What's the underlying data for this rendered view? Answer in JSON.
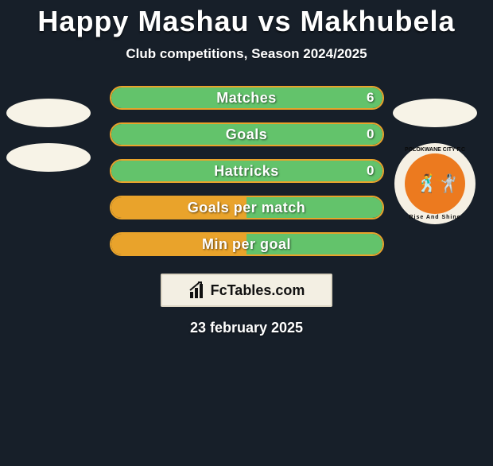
{
  "title": "Happy Mashau vs Makhubela",
  "subtitle": "Club competitions, Season 2024/2025",
  "date": "23 february 2025",
  "footer": {
    "brand": "FcTables.com"
  },
  "colors": {
    "page_bg": "#171f29",
    "text": "#ffffff",
    "series_left": "#e9a32b",
    "series_right": "#63c36b",
    "panel_bg": "#f3efe3",
    "panel_border": "#dcd5c3"
  },
  "bars": [
    {
      "label": "Matches",
      "left_value": null,
      "right_value": "6",
      "left_pct": 0.0,
      "right_pct": 1.0,
      "border_color": "#e9a32b",
      "fill_color": "#63c36b"
    },
    {
      "label": "Goals",
      "left_value": null,
      "right_value": "0",
      "left_pct": 0.0,
      "right_pct": 1.0,
      "border_color": "#e9a32b",
      "fill_color": "#63c36b"
    },
    {
      "label": "Hattricks",
      "left_value": null,
      "right_value": "0",
      "left_pct": 0.0,
      "right_pct": 1.0,
      "border_color": "#e9a32b",
      "fill_color": "#63c36b"
    },
    {
      "label": "Goals per match",
      "left_value": null,
      "right_value": null,
      "left_pct": 0.5,
      "right_pct": 0.5,
      "border_color": "#e9a32b",
      "fill_color": "#63c36b"
    },
    {
      "label": "Min per goal",
      "left_value": null,
      "right_value": null,
      "left_pct": 0.5,
      "right_pct": 0.5,
      "border_color": "#e9a32b",
      "fill_color": "#63c36b"
    }
  ],
  "left_column": {
    "items": [
      {
        "type": "ellipse"
      },
      {
        "type": "ellipse"
      }
    ]
  },
  "right_column": {
    "items": [
      {
        "type": "ellipse"
      },
      {
        "type": "club-crest",
        "top_arc_text": "POLOKWANE CITY F.C",
        "bottom_arc_text": "Rise And Shine",
        "ring_bg": "#f5f0e4",
        "inner_bg": "#ec7a1f"
      }
    ]
  }
}
